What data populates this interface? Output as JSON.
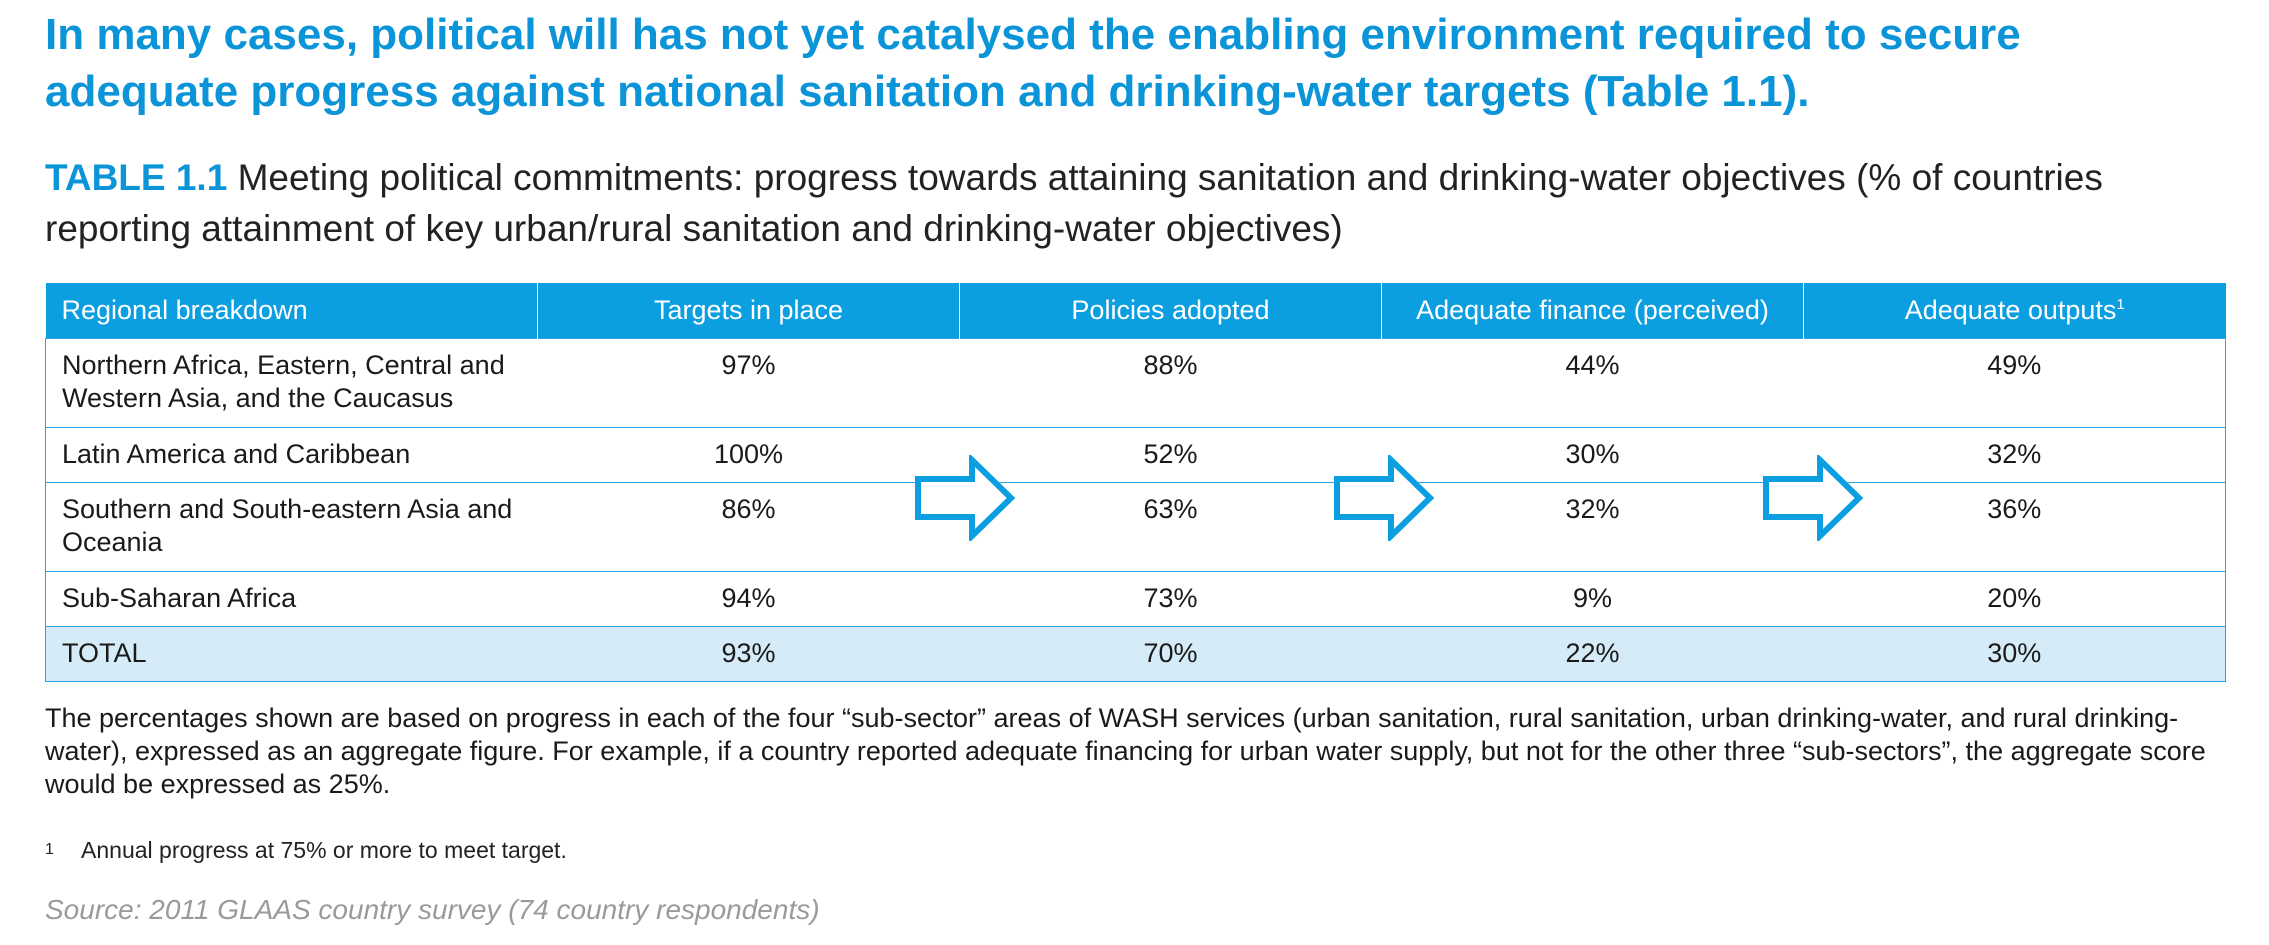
{
  "headline": "In many cases, political will has not yet catalysed the enabling environment required to secure adequate progress against national sanitation and drinking-water targets (Table 1.1).",
  "table_caption": {
    "tag": "TABLE 1.1",
    "text": "Meeting political commitments: progress towards attaining sanitation and drinking-water objectives (% of countries reporting attainment of key urban/rural sanitation and drinking-water objectives)"
  },
  "table": {
    "headers": [
      "Regional breakdown",
      "Targets in place",
      "Policies adopted",
      "Adequate finance (perceived)",
      "Adequate outputs"
    ],
    "header_footnote_mark": "1",
    "rows": [
      {
        "region": "Northern Africa, Eastern, Central and Western Asia, and the Caucasus",
        "values": [
          "97%",
          "88%",
          "44%",
          "49%"
        ]
      },
      {
        "region": "Latin America and Caribbean",
        "values": [
          "100%",
          "52%",
          "30%",
          "32%"
        ]
      },
      {
        "region": "Southern and South-eastern Asia and Oceania",
        "values": [
          "86%",
          "63%",
          "32%",
          "36%"
        ]
      },
      {
        "region": "Sub-Saharan Africa",
        "values": [
          "94%",
          "73%",
          "9%",
          "20%"
        ]
      },
      {
        "region": "TOTAL",
        "values": [
          "93%",
          "70%",
          "22%",
          "30%"
        ]
      }
    ]
  },
  "note": "The percentages shown are based on progress in each of the four “sub-sector” areas of WASH services (urban sanitation, rural sanitation, urban drinking-water, and rural drinking-water), expressed as an aggregate figure. For example, if a country reported adequate financing for urban water supply, but not for the other three “sub-sectors”, the aggregate score would be expressed as 25%.",
  "footnote": {
    "mark": "1",
    "text": "Annual progress at 75% or more to meet target."
  },
  "source": "Source: 2011 GLAAS country survey (74 country respondents)",
  "colors": {
    "accent": "#0b9ee0",
    "total_row": "#d5ecf8",
    "source_text": "#9a9a9a"
  },
  "icons": [
    "arrow-right-icon",
    "arrow-right-icon",
    "arrow-right-icon"
  ]
}
